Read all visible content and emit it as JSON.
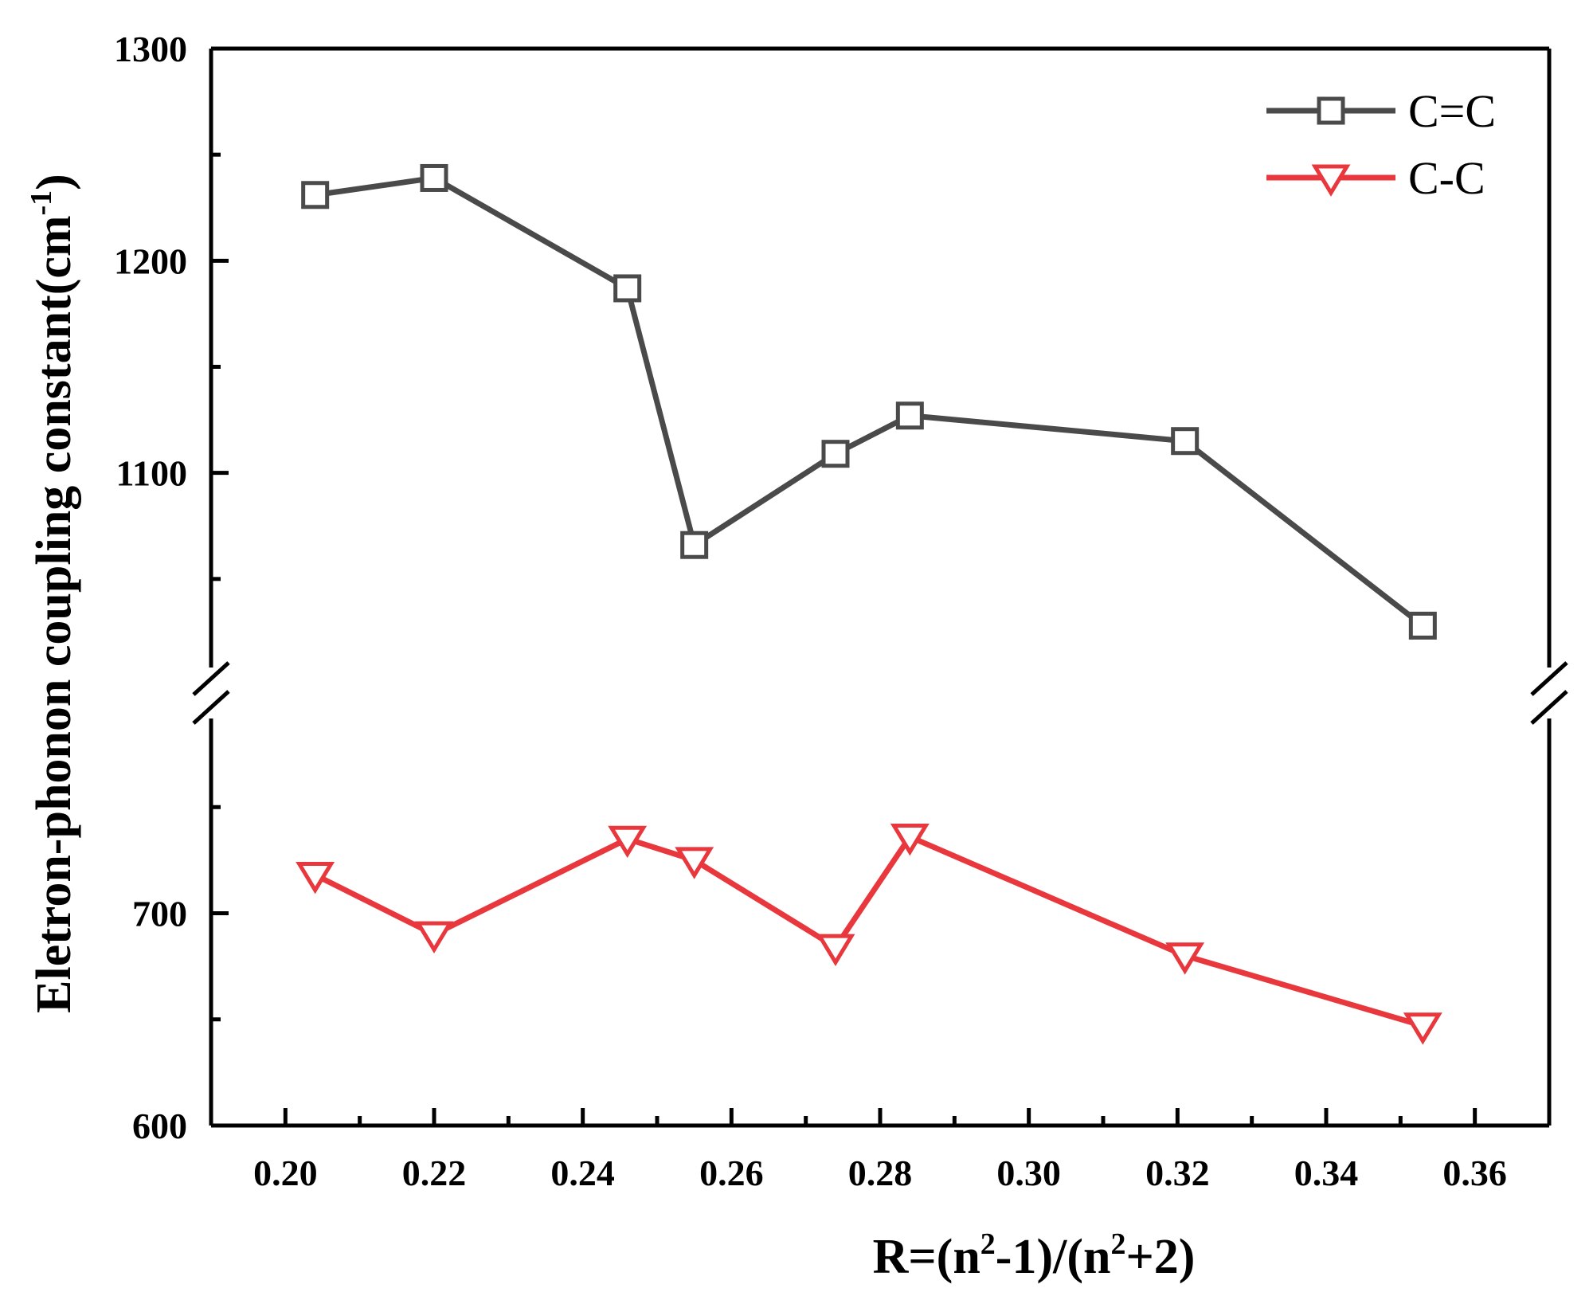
{
  "chart_data": {
    "type": "line",
    "xlabel": {
      "base": "R=(n",
      "sup1": "2",
      "mid": "-1)/(n",
      "sup2": "2",
      "end": "+2)"
    },
    "ylabel": {
      "base": "Eletron-phonon coupling constant(cm",
      "sup": "-1",
      "end": ")"
    },
    "xlim": [
      0.19,
      0.37
    ],
    "x_ticks": [
      "0.20",
      "0.22",
      "0.24",
      "0.26",
      "0.28",
      "0.30",
      "0.32",
      "0.34",
      "0.36"
    ],
    "x_tick_values": [
      0.2,
      0.22,
      0.24,
      0.26,
      0.28,
      0.3,
      0.32,
      0.34,
      0.36
    ],
    "y_axis_break": true,
    "y_upper_segment": {
      "range": [
        1000,
        1300
      ],
      "ticks": [
        "1100",
        "1200",
        "1300"
      ],
      "tick_values": [
        1100,
        1200,
        1300
      ]
    },
    "y_lower_segment": {
      "range": [
        600,
        800
      ],
      "ticks": [
        "600",
        "700"
      ],
      "tick_values": [
        600,
        700
      ]
    },
    "grid": false,
    "legend_position": "top-right",
    "series": [
      {
        "name": "C=C",
        "segment": "upper",
        "color": "#4a4a4a",
        "marker": "square",
        "x": [
          0.204,
          0.22,
          0.246,
          0.255,
          0.274,
          0.284,
          0.321,
          0.353
        ],
        "y": [
          1231,
          1239,
          1187,
          1066,
          1109,
          1127,
          1115,
          1028
        ]
      },
      {
        "name": "C-C",
        "segment": "lower",
        "color": "#e8383d",
        "marker": "triangle-down",
        "x": [
          0.204,
          0.22,
          0.246,
          0.255,
          0.274,
          0.284,
          0.321,
          0.353
        ],
        "y": [
          718,
          690,
          735,
          725,
          684,
          736,
          680,
          647
        ]
      }
    ]
  }
}
